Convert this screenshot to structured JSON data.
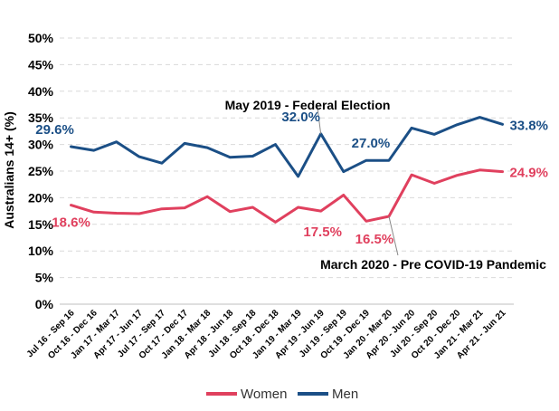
{
  "chart_data": {
    "type": "line",
    "ylabel": "Australians 14+ (%)",
    "xlabel": "",
    "ylim": [
      0,
      50
    ],
    "yticks": [
      "0%",
      "5%",
      "10%",
      "15%",
      "20%",
      "25%",
      "30%",
      "35%",
      "40%",
      "45%",
      "50%"
    ],
    "grid": true,
    "legend_position": "bottom",
    "categories": [
      "Jul 16 - Sep 16",
      "Oct 16 - Dec 16",
      "Jan 17 - Mar 17",
      "Apr 17 - Jun 17",
      "Jul 17 - Sep 17",
      "Oct 17 - Dec 17",
      "Jan 18 - Mar 18",
      "Apr 18 - Jun 18",
      "Jul 18 - Sep 18",
      "Oct 18 - Dec 18",
      "Jan 19 - Mar 19",
      "Apr 19 - Jun 19",
      "Jul 19 - Sep 19",
      "Oct 19 - Dec 19",
      "Jan 20 - Mar 20",
      "Apr 20 - Jun 20",
      "Jul 20 - Sep 20",
      "Oct 20 - Dec 20",
      "Jan 21 - Mar 21",
      "Apr 21 - Jun 21"
    ],
    "series": [
      {
        "name": "Women",
        "color": "#e0405e",
        "values": [
          18.6,
          17.3,
          17.1,
          17.0,
          17.9,
          18.1,
          20.2,
          17.4,
          18.2,
          15.4,
          18.2,
          17.5,
          20.5,
          15.6,
          16.5,
          24.3,
          22.7,
          24.2,
          25.2,
          24.9
        ]
      },
      {
        "name": "Men",
        "color": "#1b4f86",
        "values": [
          29.6,
          28.9,
          30.5,
          27.7,
          26.5,
          30.2,
          29.4,
          27.6,
          27.8,
          30.0,
          24.0,
          32.0,
          24.9,
          27.0,
          27.0,
          33.1,
          31.9,
          33.7,
          35.1,
          33.8
        ]
      }
    ],
    "data_labels": [
      {
        "text": "29.6%",
        "series": 1,
        "index": 0
      },
      {
        "text": "32.0%",
        "series": 1,
        "index": 11
      },
      {
        "text": "27.0%",
        "series": 1,
        "index": 14
      },
      {
        "text": "33.8%",
        "series": 1,
        "index": 19
      },
      {
        "text": "18.6%",
        "series": 0,
        "index": 0
      },
      {
        "text": "17.5%",
        "series": 0,
        "index": 11
      },
      {
        "text": "16.5%",
        "series": 0,
        "index": 14
      },
      {
        "text": "24.9%",
        "series": 0,
        "index": 19
      }
    ],
    "annotations": [
      {
        "text": "May 2019 - Federal Election"
      },
      {
        "text": "March 2020 - Pre COVID-19 Pandemic"
      }
    ]
  }
}
